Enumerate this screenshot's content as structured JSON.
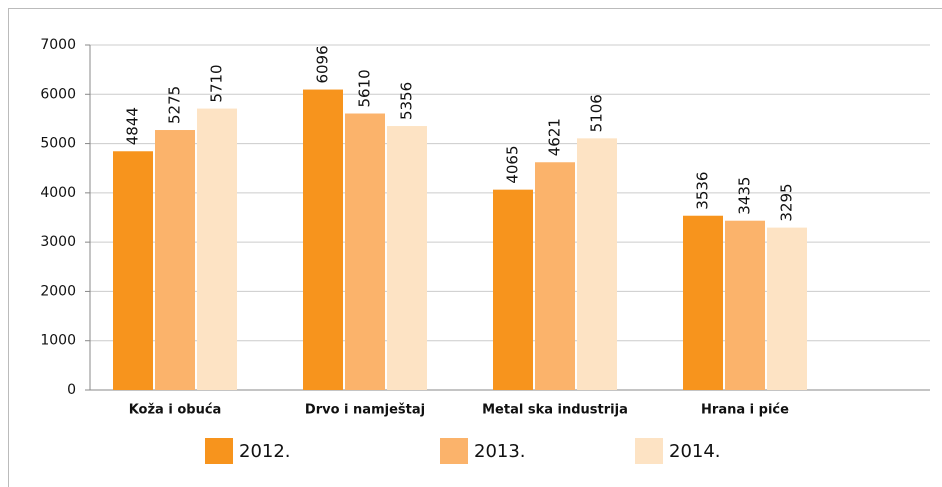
{
  "chart_data": {
    "type": "bar",
    "categories": [
      "Koža i obuća",
      "Drvo i namještaj",
      "Metal ska industrija",
      "Hrana i piće"
    ],
    "series": [
      {
        "name": "2012.",
        "color": "#f7941d",
        "values": [
          4844,
          6096,
          4065,
          3536
        ]
      },
      {
        "name": "2013.",
        "color": "#fbb36b",
        "values": [
          5275,
          5610,
          4621,
          3435
        ]
      },
      {
        "name": "2014.",
        "color": "#fde3c4",
        "values": [
          5710,
          5356,
          5106,
          3295
        ]
      }
    ],
    "ylim": [
      0,
      7000
    ],
    "yticks": [
      0,
      1000,
      2000,
      3000,
      4000,
      5000,
      6000,
      7000
    ],
    "grid": true
  }
}
